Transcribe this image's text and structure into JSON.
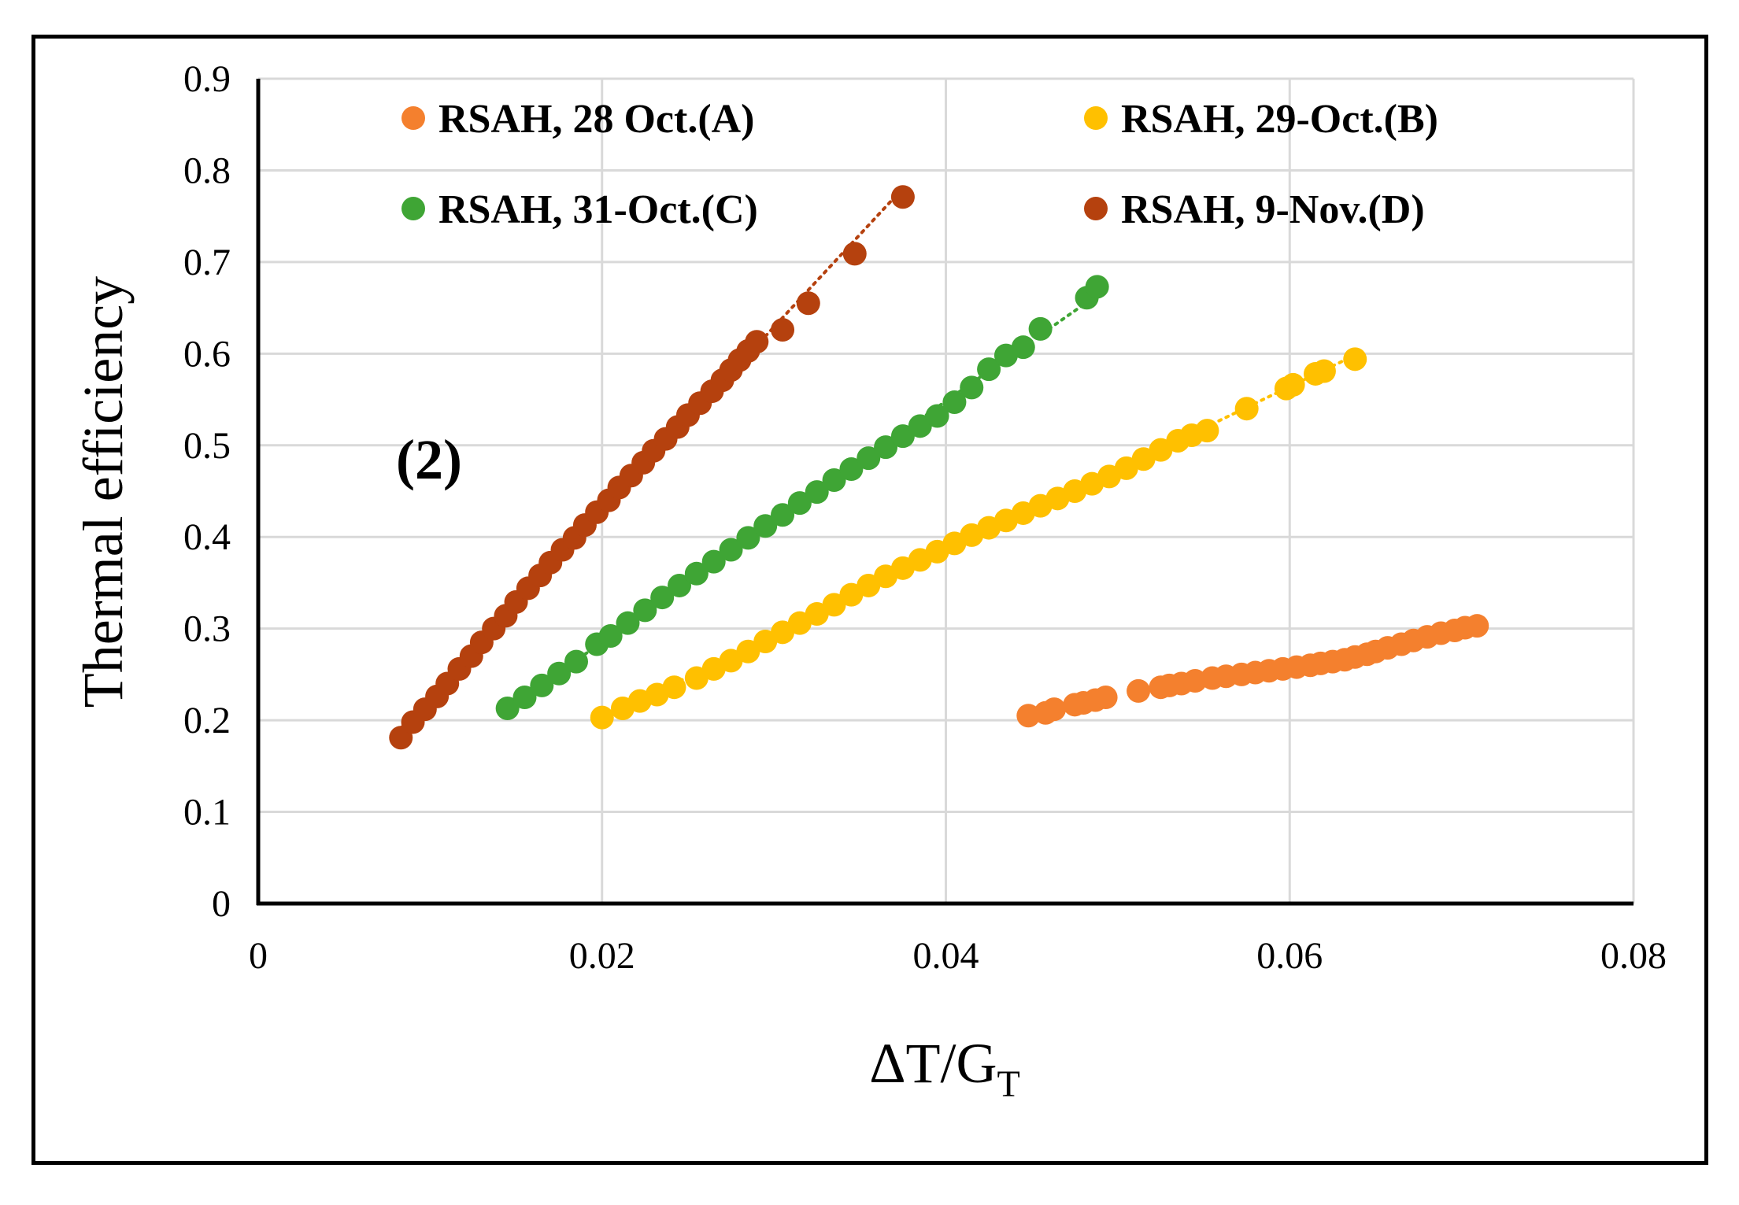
{
  "chart_data": {
    "type": "scatter",
    "title": "",
    "xlabel": "ΔT/G",
    "xlabel_subscript": "T",
    "ylabel": "Thermal efficiency",
    "xlim": [
      0,
      0.08
    ],
    "ylim": [
      0,
      0.9
    ],
    "x_ticks": [
      0,
      0.02,
      0.04,
      0.06,
      0.08
    ],
    "x_tick_labels": [
      "0",
      "0.02",
      "0.04",
      "0.06",
      "0.08"
    ],
    "y_ticks": [
      0,
      0.1,
      0.2,
      0.3,
      0.4,
      0.5,
      0.6,
      0.7,
      0.8,
      0.9
    ],
    "y_tick_labels": [
      "0",
      "0.1",
      "0.2",
      "0.3",
      "0.4",
      "0.5",
      "0.6",
      "0.7",
      "0.8",
      "0.9"
    ],
    "grid": true,
    "legend_position": "top",
    "annotation": "(2)",
    "series": [
      {
        "name": "RSAH, 28 Oct.(A)",
        "color": "#F4802E",
        "trendline": false,
        "x": [
          0.0448,
          0.0458,
          0.0463,
          0.0475,
          0.048,
          0.0487,
          0.0493,
          0.0512,
          0.0525,
          0.053,
          0.0537,
          0.0545,
          0.0555,
          0.0563,
          0.0572,
          0.058,
          0.0588,
          0.0596,
          0.0604,
          0.0612,
          0.0618,
          0.0625,
          0.0632,
          0.0638,
          0.0645,
          0.065,
          0.0657,
          0.0665,
          0.0672,
          0.068,
          0.0688,
          0.0696,
          0.0702,
          0.0709
        ],
        "y": [
          0.205,
          0.208,
          0.212,
          0.217,
          0.219,
          0.222,
          0.225,
          0.232,
          0.236,
          0.238,
          0.24,
          0.243,
          0.246,
          0.248,
          0.25,
          0.252,
          0.254,
          0.256,
          0.258,
          0.26,
          0.262,
          0.264,
          0.266,
          0.269,
          0.272,
          0.275,
          0.279,
          0.283,
          0.287,
          0.291,
          0.295,
          0.298,
          0.301,
          0.303
        ]
      },
      {
        "name": "RSAH, 29-Oct.(B)",
        "color": "#FFC000",
        "trendline": true,
        "x": [
          0.02,
          0.0212,
          0.0222,
          0.0232,
          0.0242,
          0.0255,
          0.0265,
          0.0275,
          0.0285,
          0.0295,
          0.0305,
          0.0315,
          0.0325,
          0.0335,
          0.0345,
          0.0355,
          0.0365,
          0.0375,
          0.0385,
          0.0395,
          0.0405,
          0.0415,
          0.0425,
          0.0435,
          0.0445,
          0.0455,
          0.0465,
          0.0475,
          0.0485,
          0.0495,
          0.0505,
          0.0515,
          0.0525,
          0.0535,
          0.0543,
          0.0552,
          0.0575,
          0.0598,
          0.0602,
          0.0615,
          0.062,
          0.0638
        ],
        "y": [
          0.203,
          0.213,
          0.221,
          0.228,
          0.236,
          0.246,
          0.256,
          0.265,
          0.275,
          0.286,
          0.296,
          0.306,
          0.316,
          0.326,
          0.337,
          0.347,
          0.357,
          0.366,
          0.375,
          0.384,
          0.393,
          0.402,
          0.41,
          0.418,
          0.426,
          0.434,
          0.442,
          0.45,
          0.458,
          0.466,
          0.475,
          0.485,
          0.495,
          0.505,
          0.511,
          0.516,
          0.54,
          0.562,
          0.566,
          0.578,
          0.581,
          0.594
        ]
      },
      {
        "name": "RSAH, 31-Oct.(C)",
        "color": "#3FA535",
        "trendline": true,
        "x": [
          0.0145,
          0.0155,
          0.0165,
          0.0175,
          0.0185,
          0.0197,
          0.0205,
          0.0215,
          0.0225,
          0.0235,
          0.0245,
          0.0255,
          0.0265,
          0.0275,
          0.0285,
          0.0295,
          0.0305,
          0.0315,
          0.0325,
          0.0335,
          0.0345,
          0.0355,
          0.0365,
          0.0375,
          0.0385,
          0.0395,
          0.0405,
          0.0415,
          0.0425,
          0.0435,
          0.0445,
          0.0455,
          0.0482,
          0.0488
        ],
        "y": [
          0.213,
          0.225,
          0.238,
          0.251,
          0.264,
          0.283,
          0.292,
          0.306,
          0.32,
          0.334,
          0.347,
          0.36,
          0.373,
          0.386,
          0.399,
          0.412,
          0.424,
          0.437,
          0.449,
          0.462,
          0.474,
          0.486,
          0.498,
          0.51,
          0.521,
          0.532,
          0.547,
          0.563,
          0.583,
          0.598,
          0.607,
          0.627,
          0.661,
          0.673
        ]
      },
      {
        "name": "RSAH, 9-Nov.(D)",
        "color": "#B5410E",
        "trendline": true,
        "x": [
          0.0083,
          0.009,
          0.0097,
          0.0104,
          0.011,
          0.0117,
          0.0124,
          0.013,
          0.0137,
          0.0144,
          0.015,
          0.0157,
          0.0164,
          0.017,
          0.0177,
          0.0184,
          0.019,
          0.0197,
          0.0204,
          0.021,
          0.0217,
          0.0224,
          0.023,
          0.0237,
          0.0244,
          0.025,
          0.0257,
          0.0264,
          0.027,
          0.0275,
          0.028,
          0.0285,
          0.029,
          0.0305,
          0.032,
          0.0347,
          0.0375
        ],
        "y": [
          0.181,
          0.198,
          0.212,
          0.226,
          0.24,
          0.256,
          0.27,
          0.285,
          0.3,
          0.314,
          0.329,
          0.344,
          0.358,
          0.372,
          0.386,
          0.399,
          0.413,
          0.427,
          0.44,
          0.454,
          0.467,
          0.481,
          0.494,
          0.507,
          0.52,
          0.533,
          0.546,
          0.559,
          0.571,
          0.582,
          0.593,
          0.603,
          0.613,
          0.626,
          0.655,
          0.709,
          0.771
        ]
      }
    ]
  }
}
